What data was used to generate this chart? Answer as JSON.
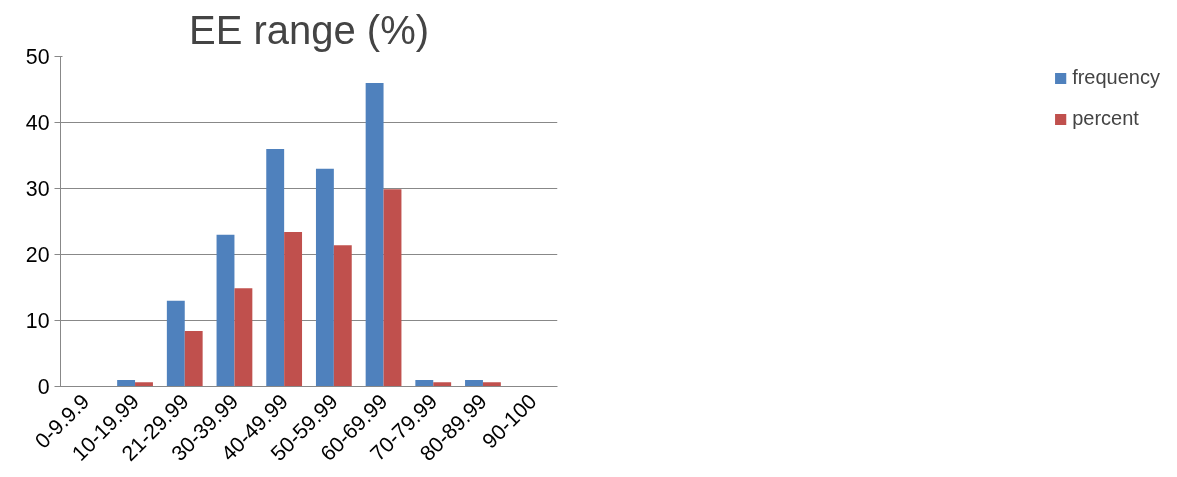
{
  "chart_data": {
    "type": "bar",
    "title": "EE range (%)",
    "categories": [
      "0-9.9.9",
      "10-19.99",
      "21-29.99",
      "30-39.99",
      "40-49.99",
      "50-59.99",
      "60-69.99",
      "70-79.99",
      "80-89.99",
      "90-100"
    ],
    "series": [
      {
        "name": "frequency",
        "color": "#4f81bd",
        "values": [
          0,
          1,
          13,
          23,
          36,
          33,
          46,
          1,
          1,
          0
        ]
      },
      {
        "name": "percent",
        "color": "#c0504d",
        "values": [
          0,
          0.65,
          8.4,
          14.9,
          23.4,
          21.4,
          29.9,
          0.65,
          0.65,
          0
        ]
      }
    ],
    "ylim": [
      0,
      50
    ],
    "yticks": [
      0,
      10,
      20,
      30,
      40,
      50
    ],
    "grid": "y",
    "legend": "right"
  }
}
